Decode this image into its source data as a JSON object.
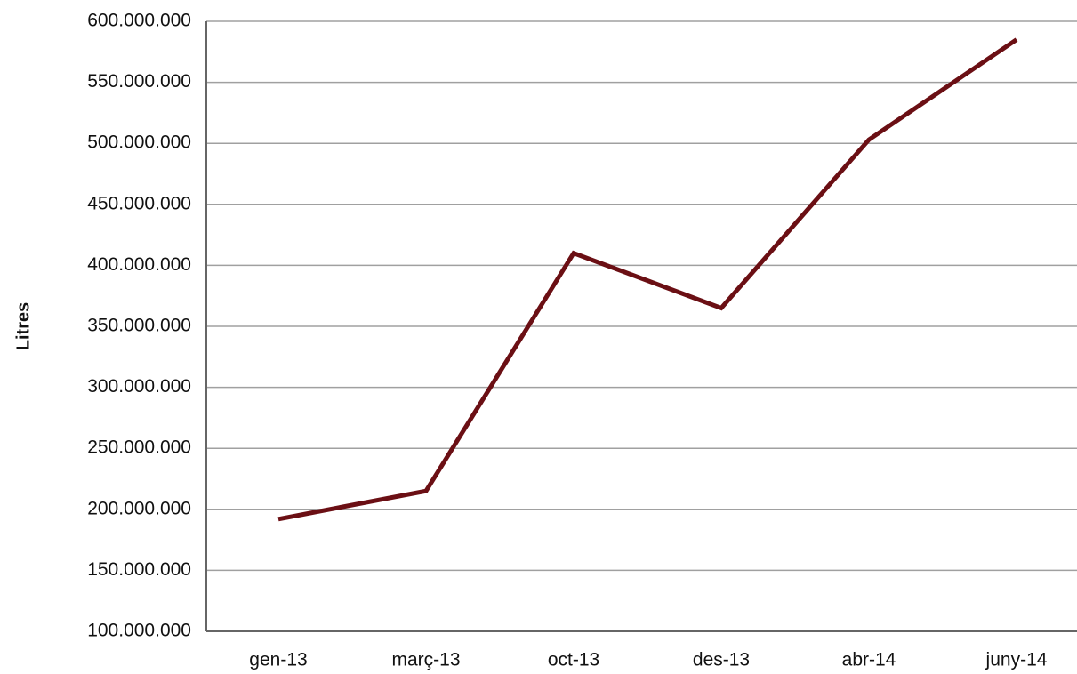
{
  "chart_data": {
    "type": "line",
    "y_label": "Litres",
    "categories": [
      "gen-13",
      "març-13",
      "oct-13",
      "des-13",
      "abr-14",
      "juny-14"
    ],
    "series": [
      {
        "name": "Litres",
        "color": "#6b0f14",
        "values": [
          192000000,
          215000000,
          410000000,
          365000000,
          503000000,
          585000000
        ]
      }
    ],
    "ylim": [
      100000000,
      600000000
    ],
    "yticks": [
      {
        "value": 100000000,
        "label": "100.000.000"
      },
      {
        "value": 150000000,
        "label": "150.000.000"
      },
      {
        "value": 200000000,
        "label": "200.000.000"
      },
      {
        "value": 250000000,
        "label": "250.000.000"
      },
      {
        "value": 300000000,
        "label": "300.000.000"
      },
      {
        "value": 350000000,
        "label": "350.000.000"
      },
      {
        "value": 400000000,
        "label": "400.000.000"
      },
      {
        "value": 450000000,
        "label": "450.000.000"
      },
      {
        "value": 500000000,
        "label": "500.000.000"
      },
      {
        "value": 550000000,
        "label": "550.000.000"
      },
      {
        "value": 600000000,
        "label": "600.000.000"
      }
    ],
    "grid": true
  }
}
